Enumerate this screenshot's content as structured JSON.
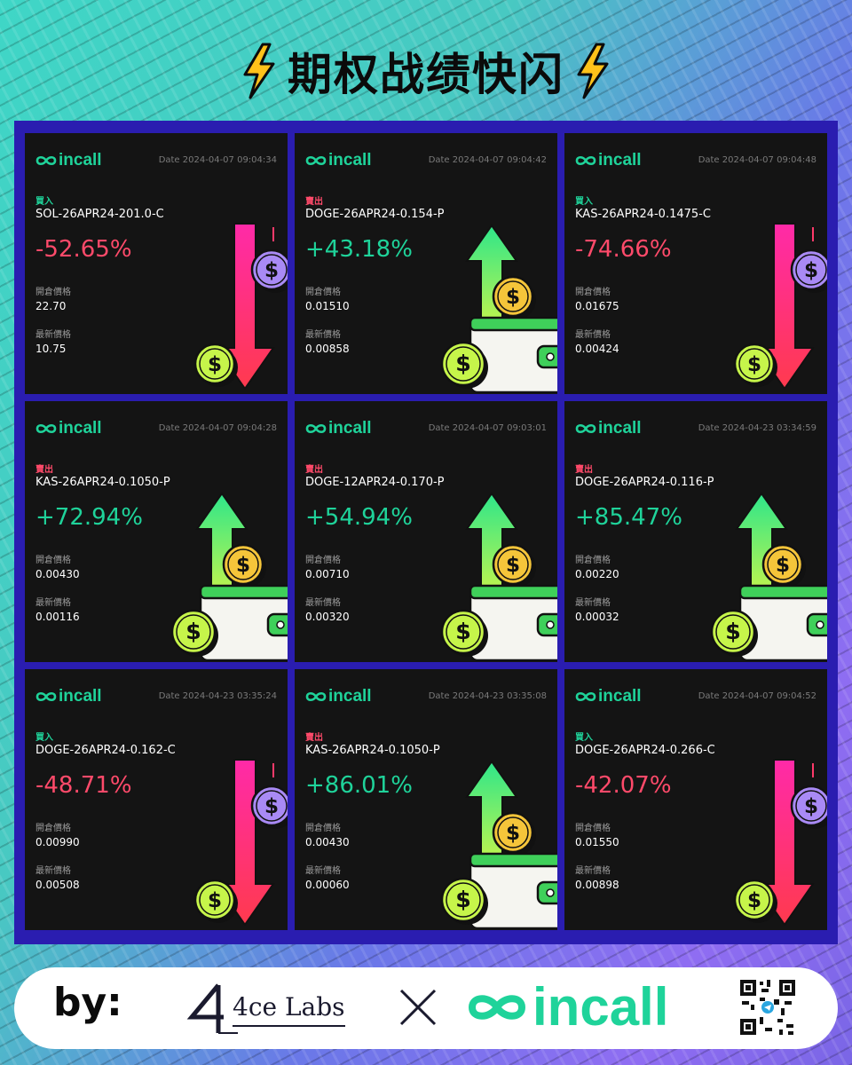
{
  "title": "期权战绩快闪",
  "brand": "incall",
  "date_prefix": "Date",
  "labels": {
    "open_price": "開倉價格",
    "last_price": "最新價格"
  },
  "colors": {
    "up": "#1fd39a",
    "down": "#ff4a6a",
    "frame": "#2a1db0"
  },
  "cards": [
    {
      "side": "買入",
      "side_type": "buy",
      "instrument": "SOL-26APR24-201.0-C",
      "date": "2024-04-07 09:04:34",
      "pnl": "-52.65%",
      "direction": "down",
      "open_price": "22.70",
      "last_price": "10.75"
    },
    {
      "side": "賣出",
      "side_type": "sell",
      "instrument": "DOGE-26APR24-0.154-P",
      "date": "2024-04-07 09:04:42",
      "pnl": "+43.18%",
      "direction": "up",
      "open_price": "0.01510",
      "last_price": "0.00858"
    },
    {
      "side": "買入",
      "side_type": "buy",
      "instrument": "KAS-26APR24-0.1475-C",
      "date": "2024-04-07 09:04:48",
      "pnl": "-74.66%",
      "direction": "down",
      "open_price": "0.01675",
      "last_price": "0.00424"
    },
    {
      "side": "賣出",
      "side_type": "sell",
      "instrument": "KAS-26APR24-0.1050-P",
      "date": "2024-04-07 09:04:28",
      "pnl": "+72.94%",
      "direction": "up",
      "open_price": "0.00430",
      "last_price": "0.00116"
    },
    {
      "side": "賣出",
      "side_type": "sell",
      "instrument": "DOGE-12APR24-0.170-P",
      "date": "2024-04-07 09:03:01",
      "pnl": "+54.94%",
      "direction": "up",
      "open_price": "0.00710",
      "last_price": "0.00320"
    },
    {
      "side": "賣出",
      "side_type": "sell",
      "instrument": "DOGE-26APR24-0.116-P",
      "date": "2024-04-23 03:34:59",
      "pnl": "+85.47%",
      "direction": "up",
      "open_price": "0.00220",
      "last_price": "0.00032"
    },
    {
      "side": "買入",
      "side_type": "buy",
      "instrument": "DOGE-26APR24-0.162-C",
      "date": "2024-04-23 03:35:24",
      "pnl": "-48.71%",
      "direction": "down",
      "open_price": "0.00990",
      "last_price": "0.00508"
    },
    {
      "side": "賣出",
      "side_type": "sell",
      "instrument": "KAS-26APR24-0.1050-P",
      "date": "2024-04-23 03:35:08",
      "pnl": "+86.01%",
      "direction": "up",
      "open_price": "0.00430",
      "last_price": "0.00060"
    },
    {
      "side": "買入",
      "side_type": "buy",
      "instrument": "DOGE-26APR24-0.266-C",
      "date": "2024-04-07 09:04:52",
      "pnl": "-42.07%",
      "direction": "down",
      "open_price": "0.01550",
      "last_price": "0.00898"
    }
  ],
  "footer": {
    "by_label": "by:",
    "partner_name": "4ce Labs",
    "partner_mark": "4",
    "brand": "incall"
  }
}
